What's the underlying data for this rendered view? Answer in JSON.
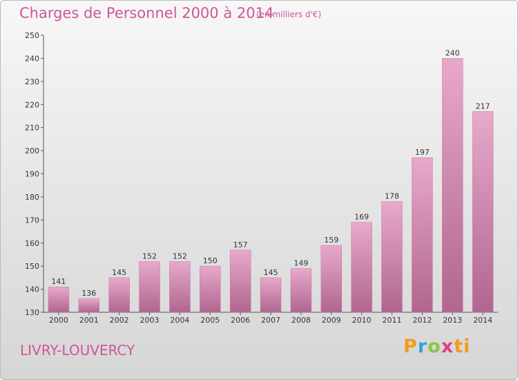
{
  "chart_data": {
    "type": "bar",
    "title": "Charges de Personnel 2000 à 2014",
    "subtitle": "(en milliers d'€)",
    "categories": [
      "2000",
      "2001",
      "2002",
      "2003",
      "2004",
      "2005",
      "2006",
      "2007",
      "2008",
      "2009",
      "2010",
      "2011",
      "2012",
      "2013",
      "2014"
    ],
    "values": [
      141,
      136,
      145,
      152,
      152,
      150,
      157,
      145,
      149,
      159,
      169,
      178,
      197,
      240,
      217
    ],
    "ylim": [
      130,
      250
    ],
    "yticks": [
      130,
      140,
      150,
      160,
      170,
      180,
      190,
      200,
      210,
      220,
      230,
      240,
      250
    ],
    "grid": false,
    "bar_color": "#d98cb8"
  },
  "commune": "LIVRY-LOUVERCY",
  "logo": {
    "p": "P",
    "r": "r",
    "o": "o",
    "x": "x",
    "i": "i",
    "t": "ti"
  }
}
